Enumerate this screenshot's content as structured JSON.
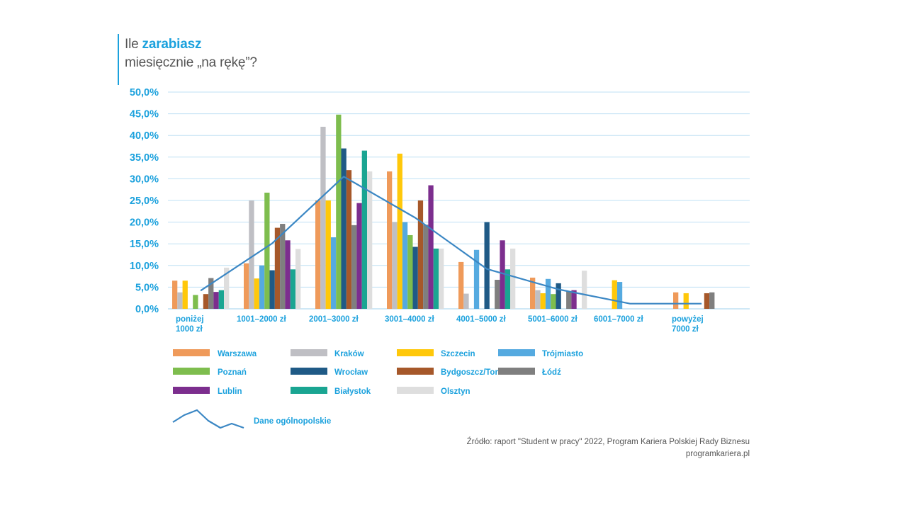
{
  "header": {
    "title_prefix": "Ile ",
    "title_highlight": "zarabiasz",
    "title_line2": "miesięcznie „na rękę”?"
  },
  "source": {
    "line1": "Źródło: raport \"Student w pracy\" 2022, Program Kariera Polskiej Rady Biznesu",
    "line2": "programkariera.pl"
  },
  "chart_data": {
    "type": "bar",
    "ylim": [
      0,
      50
    ],
    "yticks": [
      "0,0%",
      "5,0%",
      "10,0%",
      "15,0%",
      "20,0%",
      "25,0%",
      "30,0%",
      "35,0%",
      "40,0%",
      "45,0%",
      "50,0%"
    ],
    "grid": true,
    "legend_position": "bottom",
    "categories": [
      [
        "poniżej",
        "1000 zł"
      ],
      [
        "1001–2000 zł"
      ],
      [
        "2001–3000 zł"
      ],
      [
        "3001–4000 zł"
      ],
      [
        "4001–5000 zł"
      ],
      [
        "5001–6000 zł"
      ],
      [
        "6001–7000 zł"
      ],
      [
        "powyżej",
        "7000 zł"
      ]
    ],
    "series": [
      {
        "name": "Warszawa",
        "color": "#ef9a5a",
        "values": [
          6.5,
          10.5,
          25.0,
          31.7,
          10.8,
          7.2,
          0,
          3.8
        ]
      },
      {
        "name": "Kraków",
        "color": "#bfbfc4",
        "values": [
          3.8,
          25.0,
          42.0,
          20.0,
          3.5,
          4.3,
          0,
          0
        ]
      },
      {
        "name": "Szczecin",
        "color": "#ffc80a",
        "values": [
          6.5,
          7.0,
          25.0,
          35.8,
          0,
          3.6,
          6.6,
          3.6
        ]
      },
      {
        "name": "Trójmiasto",
        "color": "#55aae0",
        "values": [
          0,
          10.0,
          16.5,
          20.0,
          13.6,
          6.9,
          6.2,
          0
        ]
      },
      {
        "name": "Poznań",
        "color": "#7ebd4e",
        "values": [
          3.2,
          26.8,
          44.8,
          17.0,
          0,
          3.4,
          0,
          0
        ]
      },
      {
        "name": "Wrocław",
        "color": "#1f5a86",
        "values": [
          0,
          8.9,
          37.0,
          14.3,
          20.0,
          5.9,
          0,
          0
        ]
      },
      {
        "name": "Bydgoszcz/Toruń",
        "color": "#a6582a",
        "values": [
          3.4,
          18.7,
          32.0,
          25.0,
          0,
          0,
          0,
          3.6
        ]
      },
      {
        "name": "Łódź",
        "color": "#7f7f7f",
        "values": [
          7.1,
          19.6,
          19.3,
          19.4,
          6.7,
          4.1,
          0,
          3.8
        ]
      },
      {
        "name": "Lublin",
        "color": "#7c2e8e",
        "values": [
          3.9,
          15.8,
          24.4,
          28.5,
          15.8,
          4.3,
          0,
          0
        ]
      },
      {
        "name": "Białystok",
        "color": "#1aa592",
        "values": [
          4.3,
          9.1,
          36.5,
          13.9,
          9.1,
          0,
          0,
          0
        ]
      },
      {
        "name": "Olsztyn",
        "color": "#dedede",
        "values": [
          9.5,
          13.8,
          31.7,
          13.9,
          13.9,
          8.8,
          0,
          0
        ]
      }
    ],
    "line_series": {
      "name": "Dane ogólnopolskie",
      "color": "#3b87c4",
      "values": [
        4.2,
        15.1,
        30.5,
        21.0,
        9.2,
        4.5,
        1.2,
        1.2
      ]
    }
  }
}
